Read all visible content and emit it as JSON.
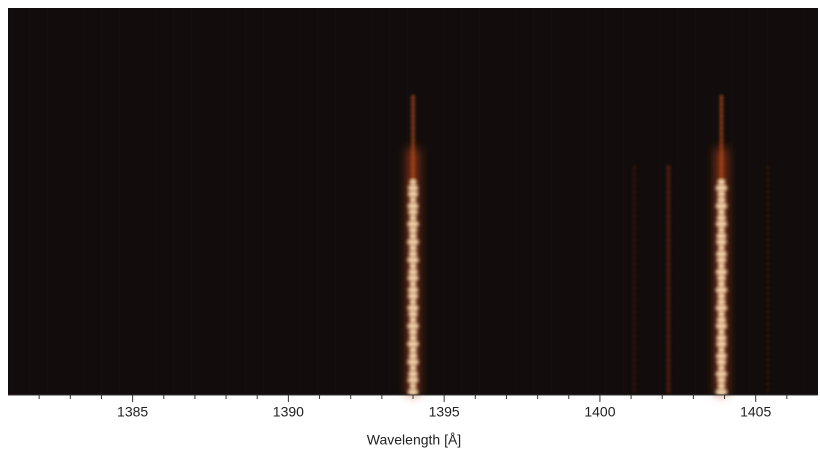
{
  "chart_data": {
    "type": "spectrum-image",
    "xlabel": "Wavelength [Å]",
    "xlim": [
      1381,
      1407
    ],
    "xticks": [
      1385,
      1390,
      1395,
      1400,
      1405
    ],
    "xminor_ticks": [
      1382,
      1383,
      1384,
      1386,
      1387,
      1388,
      1389,
      1391,
      1392,
      1393,
      1394,
      1396,
      1397,
      1398,
      1399,
      1401,
      1402,
      1403,
      1404,
      1406
    ],
    "background": "#120d0c",
    "features": [
      {
        "x": 1394.0,
        "color": "#ffe3b8"
      },
      {
        "x": 1403.9,
        "color": "#ffe3b8"
      },
      {
        "x": 1402.2,
        "color": "#7a2a10"
      },
      {
        "x": 1401.1,
        "color": "#3a160c"
      },
      {
        "x": 1405.4,
        "color": "#2e120b"
      }
    ]
  }
}
